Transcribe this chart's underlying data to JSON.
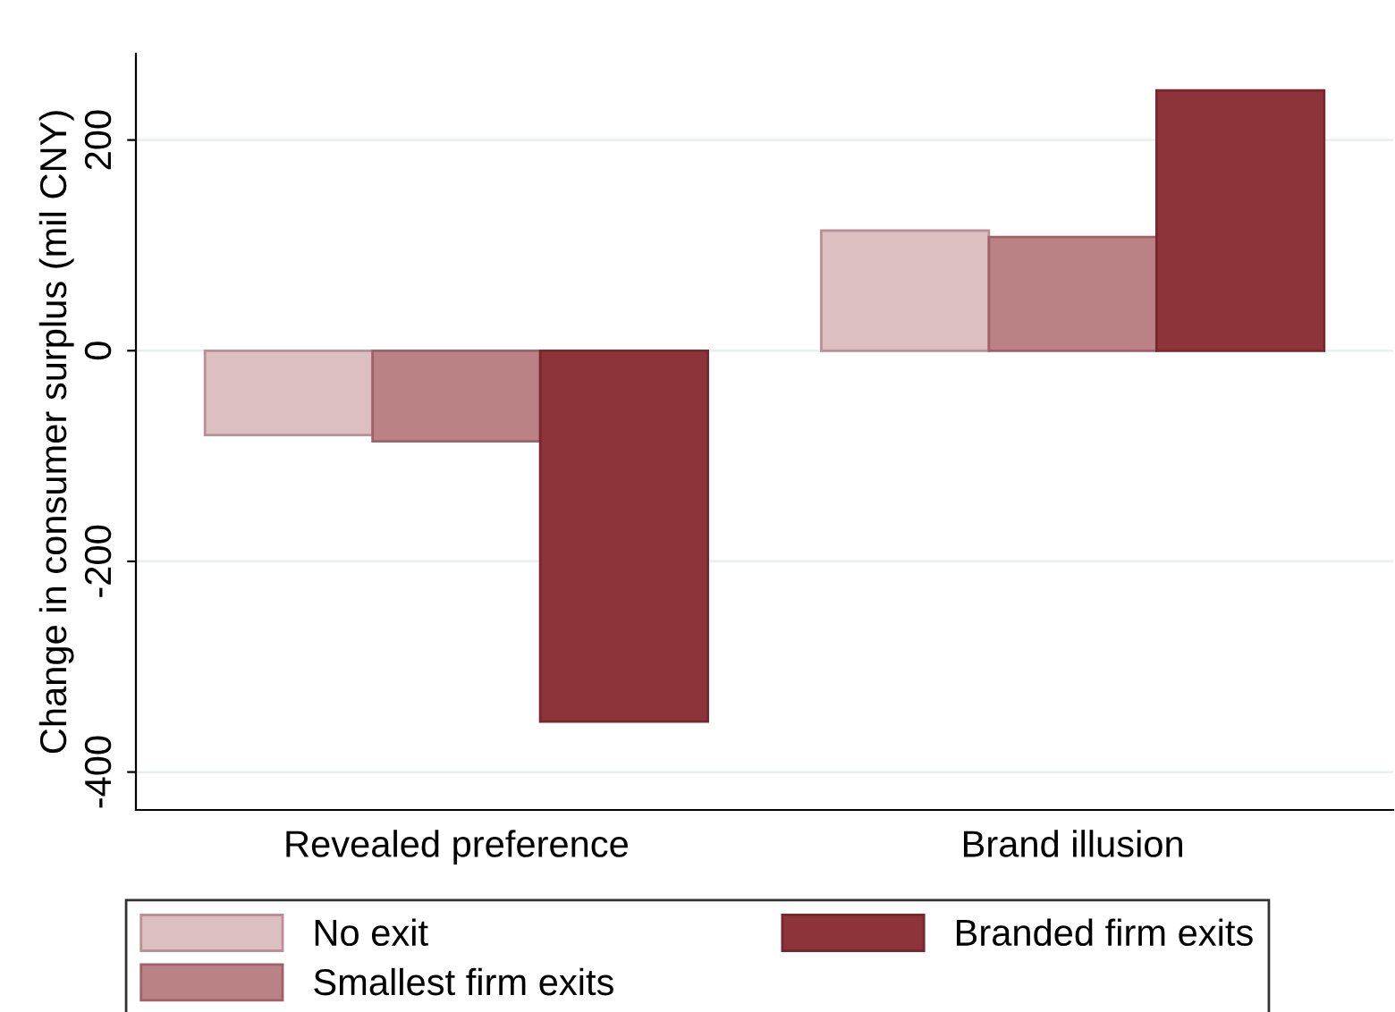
{
  "chart_data": {
    "type": "bar",
    "ylabel": "Change in consumer surplus (mil CNY)",
    "categories": [
      "Revealed preference",
      "Brand illusion"
    ],
    "series": [
      {
        "name": "No exit",
        "color": "#dcbfc1",
        "values": [
          -80,
          114
        ]
      },
      {
        "name": "Smallest firm exits",
        "color": "#bb8286",
        "values": [
          -86,
          108
        ]
      },
      {
        "name": "Branded firm exits",
        "color": "#8d343b",
        "values": [
          -352,
          247
        ]
      }
    ],
    "ylim": [
      -436,
      282
    ],
    "yticks": [
      -400,
      -200,
      0,
      200
    ],
    "grid": "y",
    "legend": "bottom"
  }
}
